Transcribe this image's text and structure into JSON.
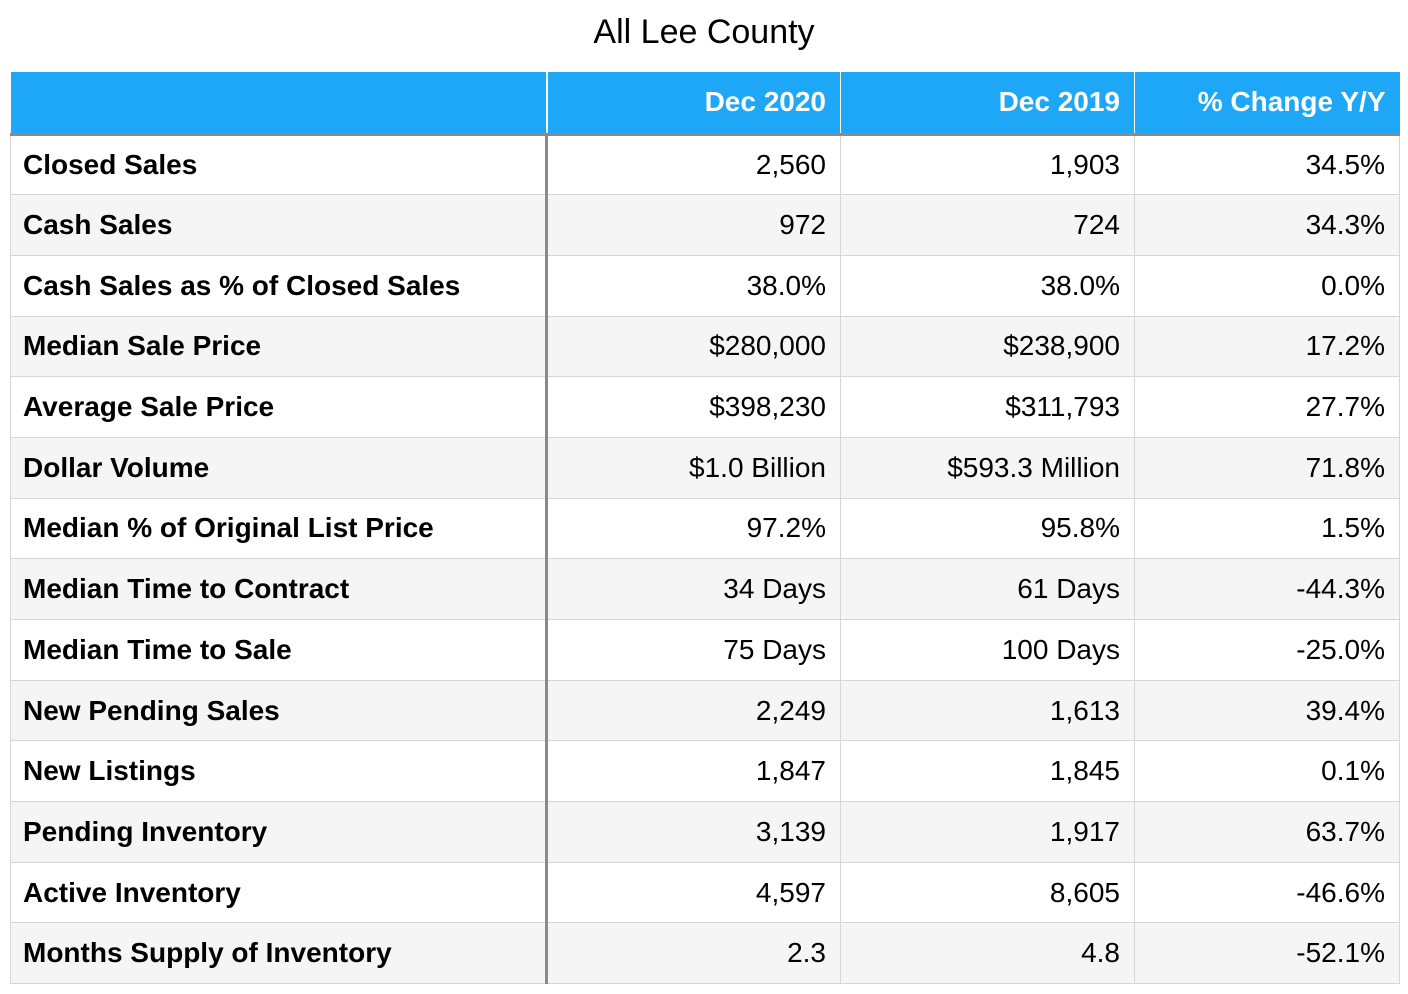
{
  "title": "All Lee County",
  "table": {
    "headers": [
      "",
      "Dec 2020",
      "Dec 2019",
      "% Change Y/Y"
    ],
    "rows": [
      {
        "metric": "Closed Sales",
        "cur": "2,560",
        "prev": "1,903",
        "change": "34.5%"
      },
      {
        "metric": "Cash Sales",
        "cur": "972",
        "prev": "724",
        "change": "34.3%"
      },
      {
        "metric": "Cash Sales as % of Closed Sales",
        "cur": "38.0%",
        "prev": "38.0%",
        "change": "0.0%"
      },
      {
        "metric": "Median Sale Price",
        "cur": "$280,000",
        "prev": "$238,900",
        "change": "17.2%"
      },
      {
        "metric": "Average Sale Price",
        "cur": "$398,230",
        "prev": "$311,793",
        "change": "27.7%"
      },
      {
        "metric": "Dollar Volume",
        "cur": "$1.0 Billion",
        "prev": "$593.3 Million",
        "change": "71.8%"
      },
      {
        "metric": "Median % of Original List Price",
        "cur": "97.2%",
        "prev": "95.8%",
        "change": "1.5%"
      },
      {
        "metric": "Median Time to Contract",
        "cur": "34 Days",
        "prev": "61 Days",
        "change": "-44.3%"
      },
      {
        "metric": "Median Time to Sale",
        "cur": "75 Days",
        "prev": "100 Days",
        "change": "-25.0%"
      },
      {
        "metric": "New Pending Sales",
        "cur": "2,249",
        "prev": "1,613",
        "change": "39.4%"
      },
      {
        "metric": "New Listings",
        "cur": "1,847",
        "prev": "1,845",
        "change": "0.1%"
      },
      {
        "metric": "Pending Inventory",
        "cur": "3,139",
        "prev": "1,917",
        "change": "63.7%"
      },
      {
        "metric": "Active Inventory",
        "cur": "4,597",
        "prev": "8,605",
        "change": "-46.6%"
      },
      {
        "metric": "Months Supply of Inventory",
        "cur": "2.3",
        "prev": "4.8",
        "change": "-52.1%"
      }
    ]
  },
  "colors": {
    "header_bg": "#1ea7f6",
    "header_text": "#ffffff",
    "alt_row_bg": "#f5f5f5",
    "grid": "#d6d6d6",
    "divider": "#8a8a8a"
  }
}
